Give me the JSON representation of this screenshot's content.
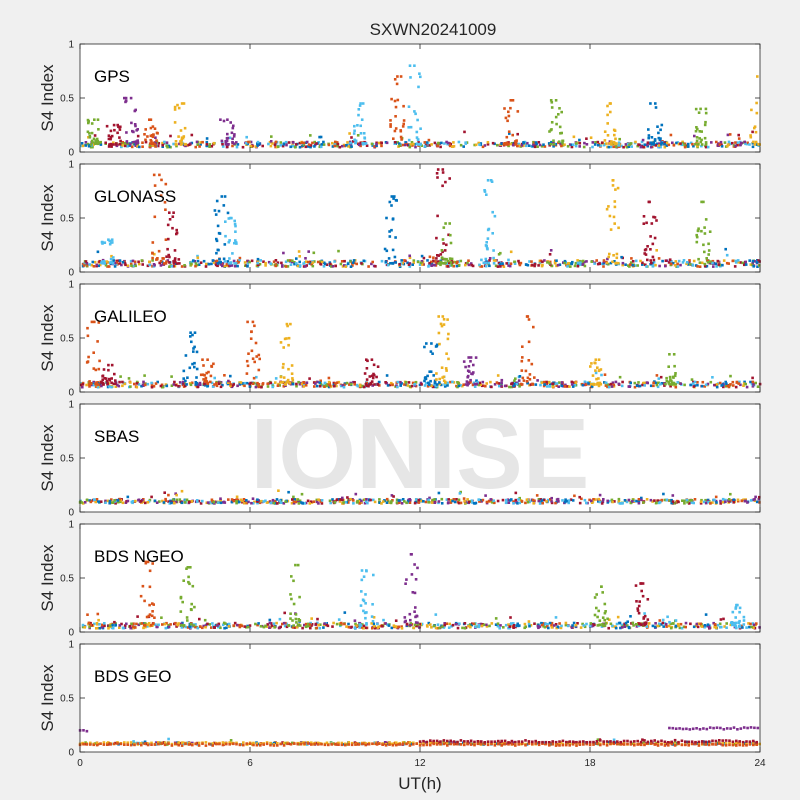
{
  "figure": {
    "title": "SXWN20241009",
    "xlabel": "UT(h)",
    "watermark": "IONISE",
    "background": "#f0f0f0",
    "axes_background": "#ffffff"
  },
  "colors": [
    "#0072BD",
    "#D95319",
    "#EDB120",
    "#7E2F8E",
    "#77AC30",
    "#4DBEEE",
    "#A2142F"
  ],
  "chart_data": [
    {
      "type": "scatter",
      "panel": "GPS",
      "label": "GPS",
      "ylabel": "S4 Index",
      "xlim": [
        0,
        24
      ],
      "ylim": [
        0,
        1
      ],
      "xticks": [
        0,
        6,
        12,
        18,
        24
      ],
      "yticks": [
        0,
        0.5,
        1
      ],
      "baseline": 0.07,
      "noise": 0.05,
      "spikes": [
        {
          "t": 0.5,
          "peak": 0.3,
          "c": 4
        },
        {
          "t": 1.2,
          "peak": 0.25,
          "c": 6
        },
        {
          "t": 1.8,
          "peak": 0.5,
          "c": 3
        },
        {
          "t": 2.5,
          "peak": 0.3,
          "c": 1
        },
        {
          "t": 3.6,
          "peak": 0.45,
          "c": 2
        },
        {
          "t": 5.2,
          "peak": 0.3,
          "c": 3
        },
        {
          "t": 9.9,
          "peak": 0.45,
          "c": 5
        },
        {
          "t": 11.2,
          "peak": 0.7,
          "c": 1
        },
        {
          "t": 11.8,
          "peak": 0.8,
          "c": 5
        },
        {
          "t": 15.2,
          "peak": 0.48,
          "c": 1
        },
        {
          "t": 16.8,
          "peak": 0.48,
          "c": 4
        },
        {
          "t": 18.7,
          "peak": 0.45,
          "c": 2
        },
        {
          "t": 20.3,
          "peak": 0.45,
          "c": 0
        },
        {
          "t": 21.9,
          "peak": 0.4,
          "c": 4
        },
        {
          "t": 23.9,
          "peak": 0.7,
          "c": 2
        }
      ]
    },
    {
      "type": "scatter",
      "panel": "GLONASS",
      "label": "GLONASS",
      "ylabel": "S4 Index",
      "xlim": [
        0,
        24
      ],
      "ylim": [
        0,
        1
      ],
      "xticks": [
        0,
        6,
        12,
        18,
        24
      ],
      "yticks": [
        0,
        0.5,
        1
      ],
      "baseline": 0.08,
      "noise": 0.06,
      "spikes": [
        {
          "t": 1.0,
          "peak": 0.3,
          "c": 5
        },
        {
          "t": 2.8,
          "peak": 0.9,
          "c": 1
        },
        {
          "t": 3.3,
          "peak": 0.55,
          "c": 6
        },
        {
          "t": 5.0,
          "peak": 0.7,
          "c": 0
        },
        {
          "t": 5.3,
          "peak": 0.5,
          "c": 5
        },
        {
          "t": 11.0,
          "peak": 0.7,
          "c": 0
        },
        {
          "t": 12.8,
          "peak": 0.95,
          "c": 6
        },
        {
          "t": 12.9,
          "peak": 0.45,
          "c": 4
        },
        {
          "t": 14.4,
          "peak": 0.85,
          "c": 5
        },
        {
          "t": 18.8,
          "peak": 0.85,
          "c": 2
        },
        {
          "t": 20.1,
          "peak": 0.65,
          "c": 6
        },
        {
          "t": 22.0,
          "peak": 0.65,
          "c": 4
        }
      ]
    },
    {
      "type": "scatter",
      "panel": "GALILEO",
      "label": "GALILEO",
      "ylabel": "S4 Index",
      "xlim": [
        0,
        24
      ],
      "ylim": [
        0,
        1
      ],
      "xticks": [
        0,
        6,
        12,
        18,
        24
      ],
      "yticks": [
        0,
        0.5,
        1
      ],
      "baseline": 0.07,
      "noise": 0.05,
      "spikes": [
        {
          "t": 0.5,
          "peak": 0.65,
          "c": 1
        },
        {
          "t": 1.0,
          "peak": 0.25,
          "c": 6
        },
        {
          "t": 3.9,
          "peak": 0.55,
          "c": 0
        },
        {
          "t": 4.5,
          "peak": 0.3,
          "c": 1
        },
        {
          "t": 6.1,
          "peak": 0.65,
          "c": 1
        },
        {
          "t": 7.3,
          "peak": 0.63,
          "c": 2
        },
        {
          "t": 10.3,
          "peak": 0.3,
          "c": 6
        },
        {
          "t": 12.4,
          "peak": 0.45,
          "c": 0
        },
        {
          "t": 12.8,
          "peak": 0.7,
          "c": 2
        },
        {
          "t": 13.8,
          "peak": 0.32,
          "c": 3
        },
        {
          "t": 15.8,
          "peak": 0.7,
          "c": 1
        },
        {
          "t": 18.2,
          "peak": 0.3,
          "c": 2
        },
        {
          "t": 20.8,
          "peak": 0.35,
          "c": 4
        }
      ]
    },
    {
      "type": "scatter",
      "panel": "SBAS",
      "label": "SBAS",
      "ylabel": "S4 Index",
      "xlim": [
        0,
        24
      ],
      "ylim": [
        0,
        1
      ],
      "xticks": [
        0,
        6,
        12,
        18,
        24
      ],
      "yticks": [
        0,
        0.5,
        1
      ],
      "baseline": 0.1,
      "noise": 0.04,
      "spikes": []
    },
    {
      "type": "scatter",
      "panel": "BDS NGEO",
      "label": "BDS NGEO",
      "ylabel": "S4 Index",
      "xlim": [
        0,
        24
      ],
      "ylim": [
        0,
        1
      ],
      "xticks": [
        0,
        6,
        12,
        18,
        24
      ],
      "yticks": [
        0,
        0.5,
        1
      ],
      "baseline": 0.06,
      "noise": 0.05,
      "spikes": [
        {
          "t": 2.4,
          "peak": 0.65,
          "c": 1
        },
        {
          "t": 3.8,
          "peak": 0.6,
          "c": 4
        },
        {
          "t": 7.6,
          "peak": 0.62,
          "c": 4
        },
        {
          "t": 10.1,
          "peak": 0.57,
          "c": 5
        },
        {
          "t": 11.7,
          "peak": 0.72,
          "c": 3
        },
        {
          "t": 18.4,
          "peak": 0.42,
          "c": 4
        },
        {
          "t": 19.8,
          "peak": 0.45,
          "c": 6
        },
        {
          "t": 23.2,
          "peak": 0.25,
          "c": 5
        }
      ]
    },
    {
      "type": "scatter",
      "panel": "BDS GEO",
      "label": "BDS GEO",
      "ylabel": "S4 Index",
      "xlim": [
        0,
        24
      ],
      "ylim": [
        0,
        1
      ],
      "xticks": [
        0,
        6,
        12,
        18,
        24
      ],
      "yticks": [
        0,
        0.5,
        1
      ],
      "baseline": 0.08,
      "noise": 0.02,
      "spikes": [],
      "tracks": [
        {
          "c": 2,
          "t0": 0.0,
          "t1": 24.0,
          "y": 0.08
        },
        {
          "c": 1,
          "t0": 0.0,
          "t1": 24.0,
          "y": 0.07
        },
        {
          "c": 6,
          "t0": 12.0,
          "t1": 24.0,
          "y": 0.1
        },
        {
          "c": 3,
          "t0": 20.8,
          "t1": 24.0,
          "y": 0.22
        },
        {
          "c": 3,
          "t0": 0.0,
          "t1": 0.3,
          "y": 0.2
        }
      ]
    }
  ]
}
